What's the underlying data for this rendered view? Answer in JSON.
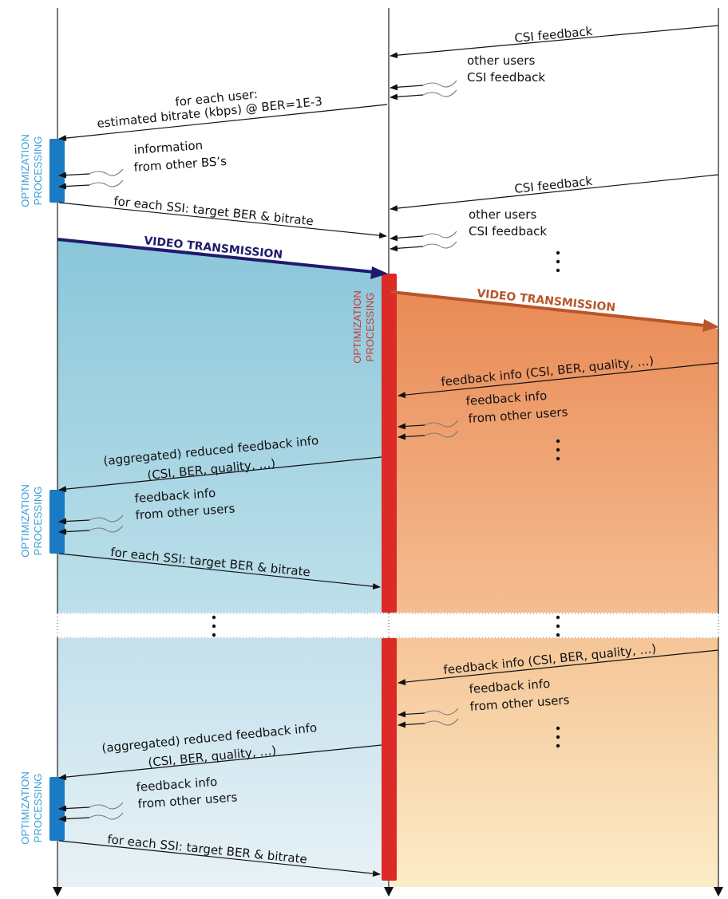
{
  "colors": {
    "blue_region": "#8cc8dc",
    "blue_region_light": "#d8eaf2",
    "orange_region": "#ea8f5a",
    "orange_region_light": "#fbe6c4",
    "blue_bar": "#1a7bc4",
    "red_bar": "#dc2a26",
    "blue_arrow": "#1e1a6e",
    "orange_arrow": "#b8562a",
    "blue_label": "#3a9fd6",
    "red_label": "#c83a33"
  },
  "icons": [
    "arrow-head-icon",
    "ellipsis-dots-icon",
    "squiggle-icon"
  ],
  "labels": {
    "csi_feedback_1": "CSI feedback",
    "other_users_1a": "other users",
    "other_users_1b": "CSI feedback",
    "for_each_user_a": "for each user:",
    "for_each_user_b": "estimated bitrate (kbps) @ BER=1E-3",
    "info_other_bs_a": "information",
    "info_other_bs_b": "from other BS’s",
    "target_1": "for each SSI: target BER & bitrate",
    "csi_feedback_2": "CSI feedback",
    "other_users_2a": "other users",
    "other_users_2b": "CSI feedback",
    "video_tx_blue": "VIDEO TRANSMISSION",
    "video_tx_orange": "VIDEO TRANSMISSION",
    "feedback_info_1": "feedback info (CSI, BER, quality, …)",
    "fb_other_1a": "feedback info",
    "fb_other_1b": "from other users",
    "reduced_1a": "(aggregated) reduced feedback info",
    "reduced_1b": "(CSI, BER, quality, …)",
    "fb_other_2a": "feedback info",
    "fb_other_2b": "from other users",
    "target_2": "for each SSI: target BER & bitrate",
    "feedback_info_2": "feedback info (CSI, BER, quality, …)",
    "fb_other_3a": "feedback info",
    "fb_other_3b": "from other users",
    "reduced_2a": "(aggregated) reduced feedback info",
    "reduced_2b": "(CSI, BER, quality, …)",
    "fb_other_4a": "feedback info",
    "fb_other_4b": "from other users",
    "target_3": "for each SSI: target BER & bitrate"
  },
  "processing_labels": {
    "optimization": "OPTIMIZATION",
    "processing": "PROCESSING"
  }
}
